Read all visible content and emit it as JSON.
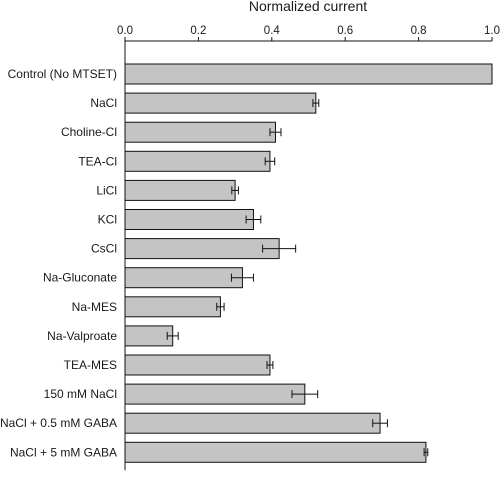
{
  "chart_data": {
    "type": "bar",
    "orientation": "horizontal",
    "title": "Normalized current",
    "xlabel": "Normalized current",
    "ylabel": "",
    "xlim": [
      0,
      1.0
    ],
    "x_ticks": [
      "0.0",
      "0.2",
      "0.4",
      "0.6",
      "0.8",
      "1.0"
    ],
    "x_axis_position": "top",
    "grid": false,
    "legend": "none",
    "bar_color": "#c4c4c4",
    "categories": [
      "Control (No MTSET)",
      "NaCl",
      "Choline-Cl",
      "TEA-Cl",
      "LiCl",
      "KCl",
      "CsCl",
      "Na-Gluconate",
      "Na-MES",
      "Na-Valproate",
      "TEA-MES",
      "150 mM NaCl",
      "NaCl + 0.5 mM GABA",
      "NaCl + 5 mM GABA"
    ],
    "values": [
      1.0,
      0.52,
      0.41,
      0.395,
      0.3,
      0.35,
      0.42,
      0.32,
      0.26,
      0.13,
      0.395,
      0.49,
      0.695,
      0.82
    ],
    "errors": [
      0,
      0.008,
      0.015,
      0.013,
      0.009,
      0.02,
      0.045,
      0.03,
      0.01,
      0.015,
      0.008,
      0.035,
      0.02,
      0.005
    ]
  }
}
